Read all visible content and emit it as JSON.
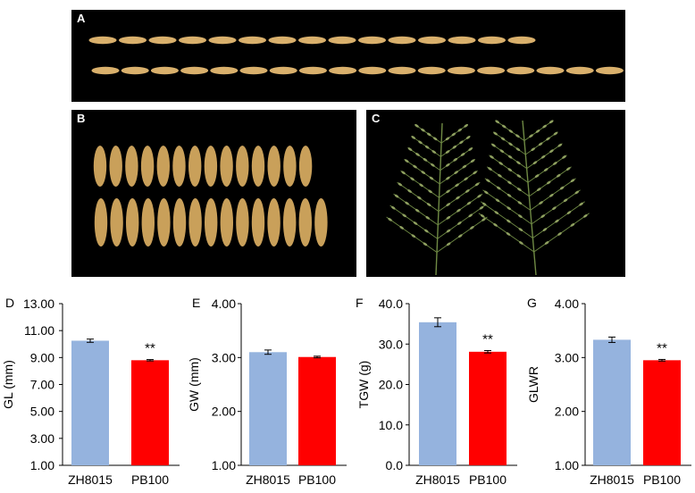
{
  "photos": [
    {
      "label": "A",
      "grain_color": "#d9b06c"
    },
    {
      "label": "B",
      "grain_color": "#c9a05a"
    },
    {
      "label": "C",
      "panicle_color": "#8fa060"
    }
  ],
  "chart_data": [
    {
      "type": "bar",
      "panel_label": "D",
      "ylabel": "GL (mm)",
      "categories": [
        "ZH8015",
        "PB100"
      ],
      "values": [
        10.25,
        8.8
      ],
      "errors": [
        0.12,
        0.05
      ],
      "colors": [
        "#95b3de",
        "#ff0000"
      ],
      "ylim": [
        1.0,
        13.0
      ],
      "ticks": [
        "1.00",
        "3.00",
        "5.00",
        "7.00",
        "9.00",
        "11.00",
        "13.00"
      ],
      "significance": [
        "",
        "**"
      ]
    },
    {
      "type": "bar",
      "panel_label": "E",
      "ylabel": "GW (mm)",
      "categories": [
        "ZH8015",
        "PB100"
      ],
      "values": [
        3.1,
        3.01
      ],
      "errors": [
        0.04,
        0.015
      ],
      "colors": [
        "#95b3de",
        "#ff0000"
      ],
      "ylim": [
        1.0,
        4.0
      ],
      "ticks": [
        "1.00",
        "2.00",
        "3.00",
        "4.00"
      ],
      "significance": [
        "",
        ""
      ]
    },
    {
      "type": "bar",
      "panel_label": "F",
      "ylabel": "TGW (g)",
      "categories": [
        "ZH8015",
        "PB100"
      ],
      "values": [
        35.4,
        28.1
      ],
      "errors": [
        1.1,
        0.3
      ],
      "colors": [
        "#95b3de",
        "#ff0000"
      ],
      "ylim": [
        0.0,
        40.0
      ],
      "ticks": [
        "0.0",
        "10.0",
        "20.0",
        "30.0",
        "40.0"
      ],
      "significance": [
        "",
        "**"
      ]
    },
    {
      "type": "bar",
      "panel_label": "G",
      "ylabel": "GLWR",
      "categories": [
        "ZH8015",
        "PB100"
      ],
      "values": [
        3.33,
        2.95
      ],
      "errors": [
        0.05,
        0.015
      ],
      "colors": [
        "#95b3de",
        "#ff0000"
      ],
      "ylim": [
        1.0,
        4.0
      ],
      "ticks": [
        "1.00",
        "2.00",
        "3.00",
        "4.00"
      ],
      "significance": [
        "",
        "**"
      ]
    }
  ]
}
